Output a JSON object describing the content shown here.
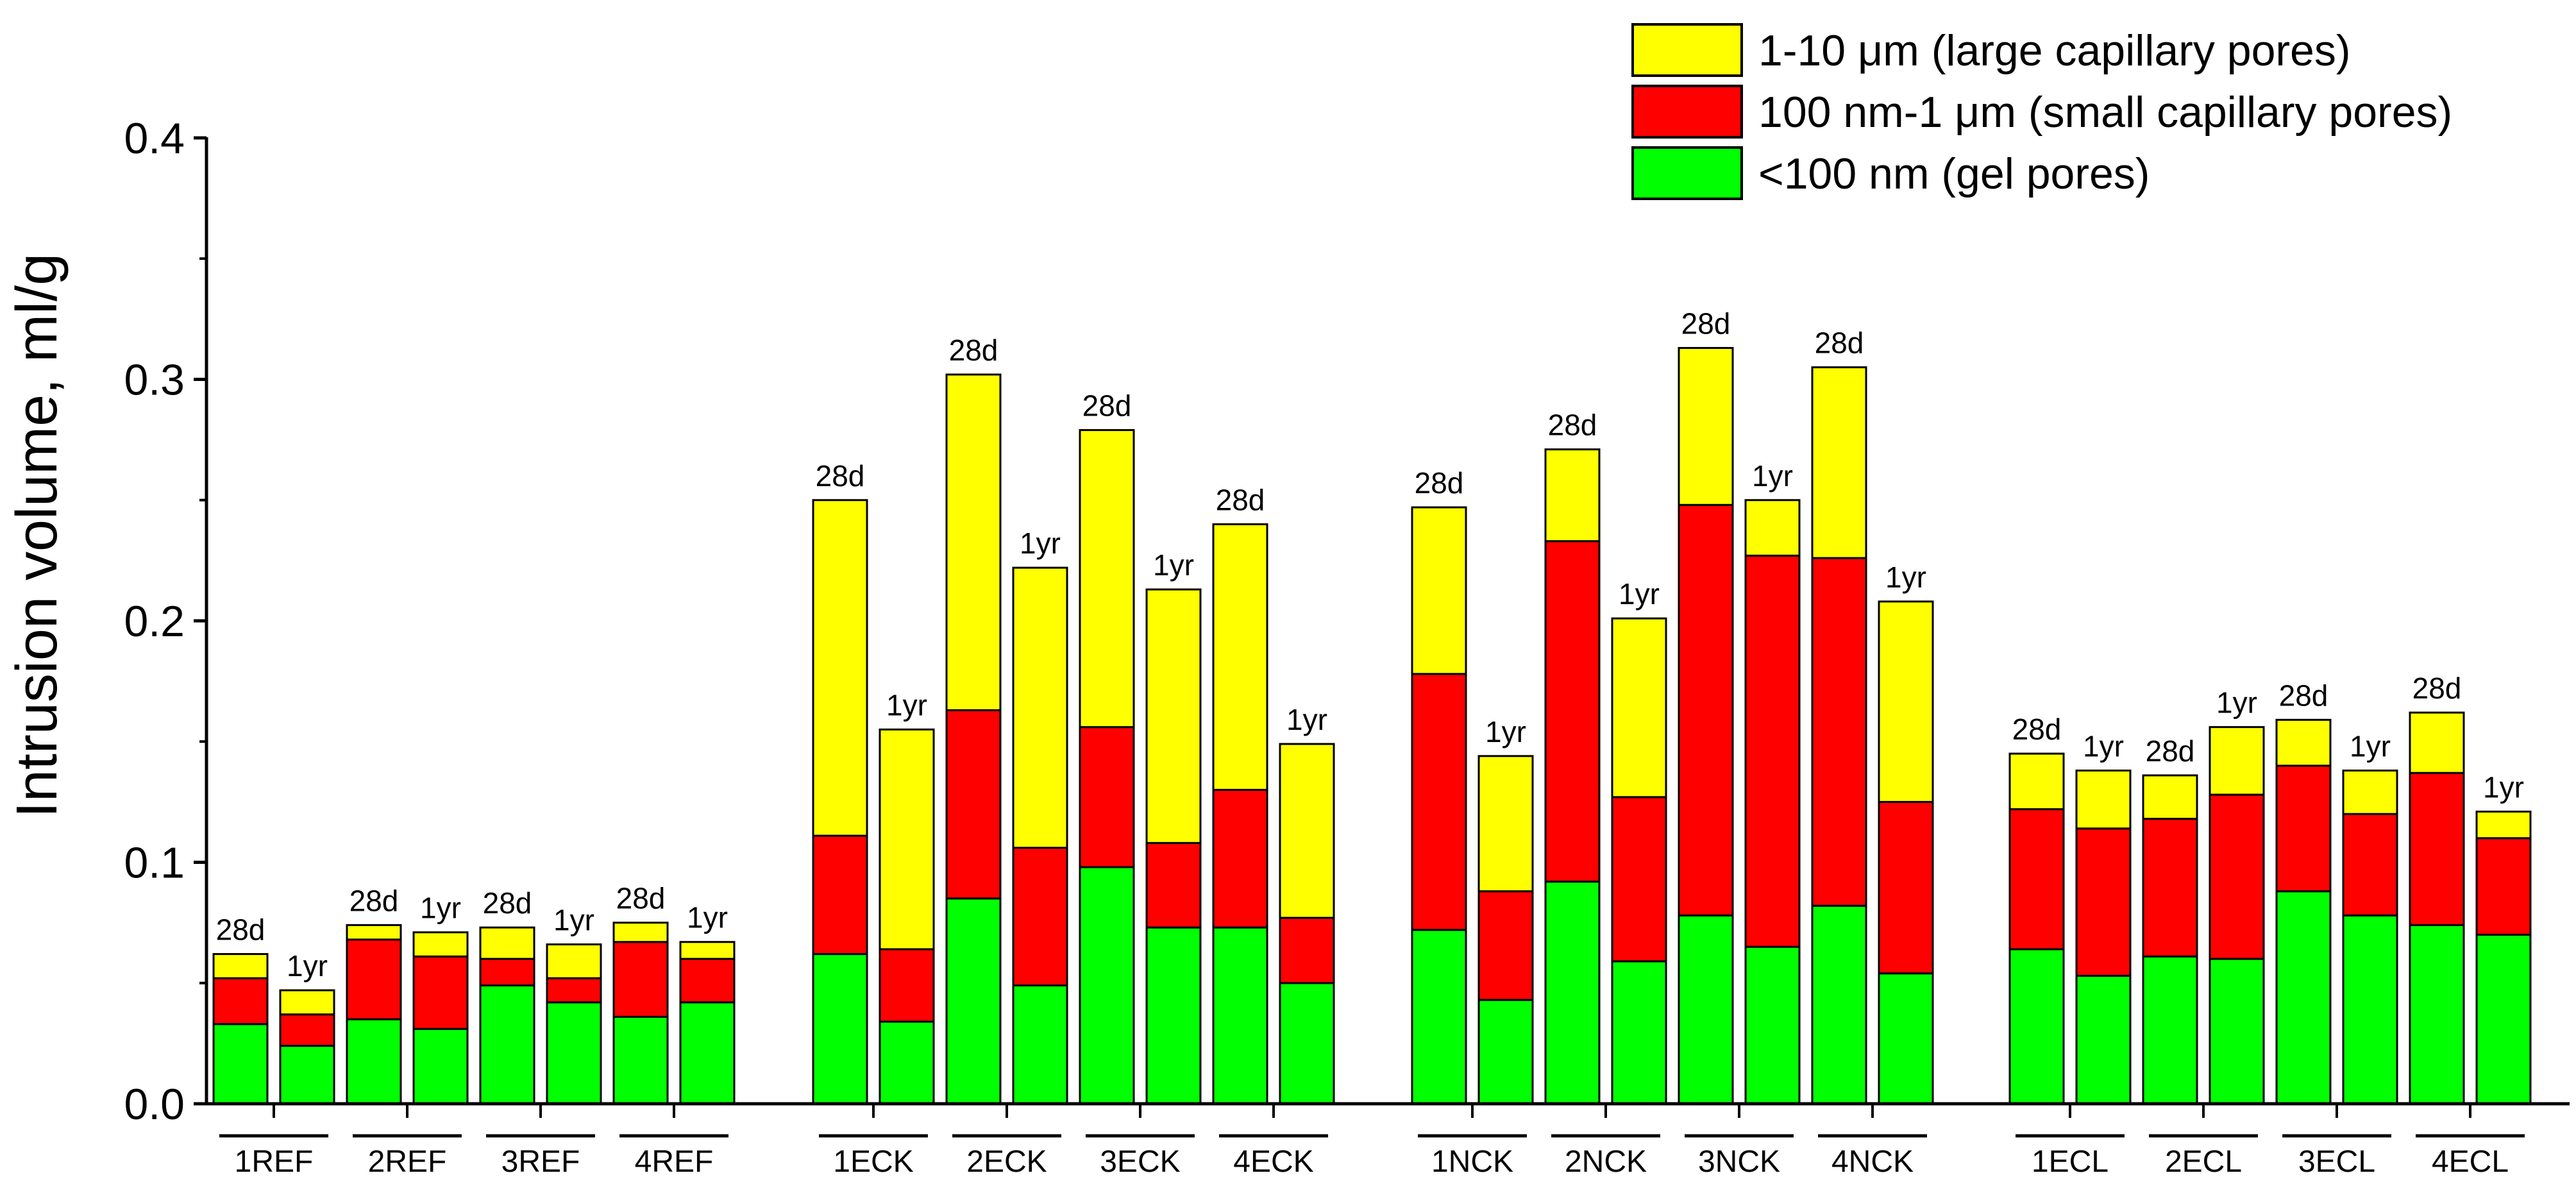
{
  "chart_data": {
    "type": "bar",
    "stacked": true,
    "ylabel": "Intrusion volume, ml/g",
    "xlabel": "",
    "ylim": [
      0,
      0.4
    ],
    "yticks": [
      "0.0",
      "0.1",
      "0.2",
      "0.3",
      "0.4"
    ],
    "ytick_values": [
      0,
      0.1,
      0.2,
      0.3,
      0.4
    ],
    "legend_position": "top-right",
    "series": [
      {
        "name": "<100 nm (gel pores)",
        "color": "#00ff00",
        "key": "gel"
      },
      {
        "name": "100 nm-1 μm (small capillary pores)",
        "color": "#ff0000",
        "key": "small"
      },
      {
        "name": "1-10 μm (large capillary pores)",
        "color": "#ffff00",
        "key": "large"
      }
    ],
    "clusters": [
      {
        "groups": [
          {
            "label": "1REF",
            "bars": [
              {
                "age": "28d",
                "gel": 0.033,
                "small": 0.019,
                "large": 0.01
              },
              {
                "age": "1yr",
                "gel": 0.024,
                "small": 0.013,
                "large": 0.01
              }
            ]
          },
          {
            "label": "2REF",
            "bars": [
              {
                "age": "28d",
                "gel": 0.035,
                "small": 0.033,
                "large": 0.006
              },
              {
                "age": "1yr",
                "gel": 0.031,
                "small": 0.03,
                "large": 0.01
              }
            ]
          },
          {
            "label": "3REF",
            "bars": [
              {
                "age": "28d",
                "gel": 0.049,
                "small": 0.011,
                "large": 0.013
              },
              {
                "age": "1yr",
                "gel": 0.042,
                "small": 0.01,
                "large": 0.014
              }
            ]
          },
          {
            "label": "4REF",
            "bars": [
              {
                "age": "28d",
                "gel": 0.036,
                "small": 0.031,
                "large": 0.008
              },
              {
                "age": "1yr",
                "gel": 0.042,
                "small": 0.018,
                "large": 0.007
              }
            ]
          }
        ]
      },
      {
        "groups": [
          {
            "label": "1ECK",
            "bars": [
              {
                "age": "28d",
                "gel": 0.062,
                "small": 0.049,
                "large": 0.139
              },
              {
                "age": "1yr",
                "gel": 0.034,
                "small": 0.03,
                "large": 0.091
              }
            ]
          },
          {
            "label": "2ECK",
            "bars": [
              {
                "age": "28d",
                "gel": 0.085,
                "small": 0.078,
                "large": 0.139
              },
              {
                "age": "1yr",
                "gel": 0.049,
                "small": 0.057,
                "large": 0.116
              }
            ]
          },
          {
            "label": "3ECK",
            "bars": [
              {
                "age": "28d",
                "gel": 0.098,
                "small": 0.058,
                "large": 0.123
              },
              {
                "age": "1yr",
                "gel": 0.073,
                "small": 0.035,
                "large": 0.105
              }
            ]
          },
          {
            "label": "4ECK",
            "bars": [
              {
                "age": "28d",
                "gel": 0.073,
                "small": 0.057,
                "large": 0.11
              },
              {
                "age": "1yr",
                "gel": 0.05,
                "small": 0.027,
                "large": 0.072
              }
            ]
          }
        ]
      },
      {
        "groups": [
          {
            "label": "1NCK",
            "bars": [
              {
                "age": "28d",
                "gel": 0.072,
                "small": 0.106,
                "large": 0.069
              },
              {
                "age": "1yr",
                "gel": 0.043,
                "small": 0.045,
                "large": 0.056
              }
            ]
          },
          {
            "label": "2NCK",
            "bars": [
              {
                "age": "28d",
                "gel": 0.092,
                "small": 0.141,
                "large": 0.038
              },
              {
                "age": "1yr",
                "gel": 0.059,
                "small": 0.068,
                "large": 0.074
              }
            ]
          },
          {
            "label": "3NCK",
            "bars": [
              {
                "age": "28d",
                "gel": 0.078,
                "small": 0.17,
                "large": 0.065
              },
              {
                "age": "1yr",
                "gel": 0.065,
                "small": 0.162,
                "large": 0.023
              }
            ]
          },
          {
            "label": "4NCK",
            "bars": [
              {
                "age": "28d",
                "gel": 0.082,
                "small": 0.144,
                "large": 0.079
              },
              {
                "age": "1yr",
                "gel": 0.054,
                "small": 0.071,
                "large": 0.083
              }
            ]
          }
        ]
      },
      {
        "groups": [
          {
            "label": "1ECL",
            "bars": [
              {
                "age": "28d",
                "gel": 0.064,
                "small": 0.058,
                "large": 0.023
              },
              {
                "age": "1yr",
                "gel": 0.053,
                "small": 0.061,
                "large": 0.024
              }
            ]
          },
          {
            "label": "2ECL",
            "bars": [
              {
                "age": "28d",
                "gel": 0.061,
                "small": 0.057,
                "large": 0.018
              },
              {
                "age": "1yr",
                "gel": 0.06,
                "small": 0.068,
                "large": 0.028
              }
            ]
          },
          {
            "label": "3ECL",
            "bars": [
              {
                "age": "28d",
                "gel": 0.088,
                "small": 0.052,
                "large": 0.019
              },
              {
                "age": "1yr",
                "gel": 0.078,
                "small": 0.042,
                "large": 0.018
              }
            ]
          },
          {
            "label": "4ECL",
            "bars": [
              {
                "age": "28d",
                "gel": 0.074,
                "small": 0.063,
                "large": 0.025
              },
              {
                "age": "1yr",
                "gel": 0.07,
                "small": 0.04,
                "large": 0.011
              }
            ]
          }
        ]
      }
    ]
  }
}
